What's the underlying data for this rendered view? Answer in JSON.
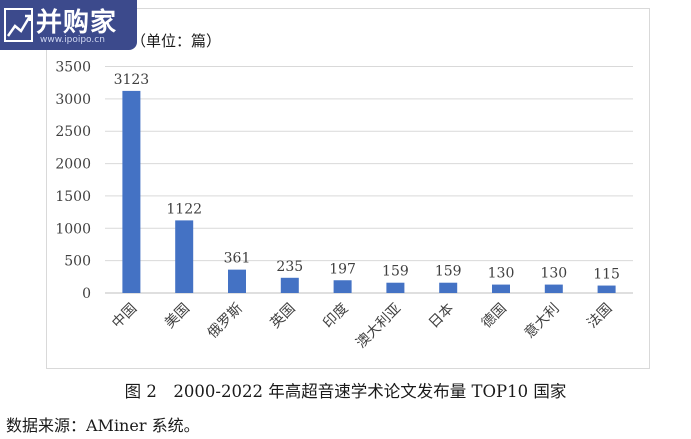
{
  "watermark": {
    "brand": "并购家",
    "url": "www.ipoipo.cn"
  },
  "chart_data": {
    "type": "bar",
    "unit_label": "（单位：篇）",
    "categories": [
      "中国",
      "美国",
      "俄罗斯",
      "英国",
      "印度",
      "澳大利亚",
      "日本",
      "德国",
      "意大利",
      "法国"
    ],
    "values": [
      3123,
      1122,
      361,
      235,
      197,
      159,
      159,
      130,
      130,
      115
    ],
    "yticks": [
      0,
      500,
      1000,
      1500,
      2000,
      2500,
      3000,
      3500
    ],
    "ylim": [
      0,
      3500
    ],
    "grid": true,
    "bar_color": "#4472c4"
  },
  "caption": "图 2　2000-2022 年高超音速学术论文发布量 TOP10 国家",
  "source": "数据来源：AMiner 系统。"
}
